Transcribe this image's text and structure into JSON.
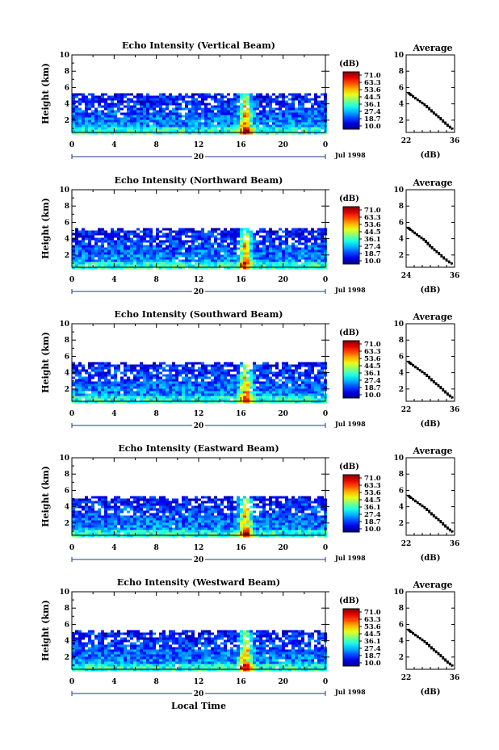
{
  "figure": {
    "x_axis_label": "Local Time",
    "date_label": "Jul 1998",
    "day_label": "20",
    "colorbar_unit": "(dB)",
    "colorbar_ticks": [
      "71.0",
      "63.3",
      "53.6",
      "44.5",
      "36.1",
      "27.4",
      "18.7",
      "10.0"
    ],
    "avg_title": "Average",
    "avg_unit": "(dB)"
  },
  "chart_data": [
    {
      "type": "heatmap",
      "title": "Echo Intensity (Vertical Beam)",
      "ylabel": "Height (km)",
      "x": [
        0,
        4,
        8,
        12,
        16,
        20,
        0
      ],
      "xlim": [
        0,
        24
      ],
      "ylim": [
        0.5,
        10
      ],
      "yticks": [
        2,
        4,
        6,
        8,
        10
      ],
      "colorscale_range_db": [
        10.0,
        71.0
      ],
      "echo_top_km": 5.3,
      "profile": {
        "title": "Average",
        "xlim": [
          22,
          36
        ],
        "xticks": [
          22,
          36
        ],
        "ylim": [
          0.5,
          10
        ],
        "yticks": [
          2,
          4,
          6,
          8,
          10
        ],
        "xlabel": "(dB)",
        "x": [
          35.5,
          33.5,
          31.5,
          29.5,
          27.5,
          25.5,
          23.5,
          22.5
        ],
        "y": [
          0.8,
          1.5,
          2.3,
          3.0,
          3.8,
          4.4,
          5.0,
          5.4
        ]
      }
    },
    {
      "type": "heatmap",
      "title": "Echo Intensity (Northward Beam)",
      "ylabel": "Height (km)",
      "x": [
        0,
        4,
        8,
        12,
        16,
        20,
        0
      ],
      "xlim": [
        0,
        24
      ],
      "ylim": [
        0.5,
        10
      ],
      "yticks": [
        2,
        4,
        6,
        8,
        10
      ],
      "colorscale_range_db": [
        10.0,
        71.0
      ],
      "echo_top_km": 5.3,
      "profile": {
        "title": "Average",
        "xlim": [
          24,
          36
        ],
        "xticks": [
          24,
          36
        ],
        "ylim": [
          0.5,
          10
        ],
        "yticks": [
          2,
          4,
          6,
          8,
          10
        ],
        "xlabel": "(dB)",
        "x": [
          35.5,
          33.5,
          31.7,
          30.0,
          28.5,
          26.8,
          25.2,
          24.3
        ],
        "y": [
          0.8,
          1.5,
          2.3,
          3.0,
          3.8,
          4.4,
          5.0,
          5.4
        ]
      }
    },
    {
      "type": "heatmap",
      "title": "Echo Intensity (Southward Beam)",
      "ylabel": "Height (km)",
      "x": [
        0,
        4,
        8,
        12,
        16,
        20,
        0
      ],
      "xlim": [
        0,
        24
      ],
      "ylim": [
        0.5,
        10
      ],
      "yticks": [
        2,
        4,
        6,
        8,
        10
      ],
      "colorscale_range_db": [
        10.0,
        71.0
      ],
      "echo_top_km": 5.3,
      "profile": {
        "title": "Average",
        "xlim": [
          22,
          36
        ],
        "xticks": [
          22,
          36
        ],
        "ylim": [
          0.5,
          10
        ],
        "yticks": [
          2,
          4,
          6,
          8,
          10
        ],
        "xlabel": "(dB)",
        "x": [
          35.5,
          33.5,
          31.5,
          29.5,
          27.5,
          25.5,
          23.5,
          22.5
        ],
        "y": [
          0.8,
          1.5,
          2.3,
          3.0,
          3.8,
          4.4,
          5.0,
          5.4
        ]
      }
    },
    {
      "type": "heatmap",
      "title": "Echo Intensity (Eastward Beam)",
      "ylabel": "Height (km)",
      "x": [
        0,
        4,
        8,
        12,
        16,
        20,
        0
      ],
      "xlim": [
        0,
        24
      ],
      "ylim": [
        0.5,
        10
      ],
      "yticks": [
        2,
        4,
        6,
        8,
        10
      ],
      "colorscale_range_db": [
        10.0,
        71.0
      ],
      "echo_top_km": 5.3,
      "profile": {
        "title": "Average",
        "xlim": [
          22,
          36
        ],
        "xticks": [
          22,
          36
        ],
        "ylim": [
          0.5,
          10
        ],
        "yticks": [
          2,
          4,
          6,
          8,
          10
        ],
        "xlabel": "(dB)",
        "x": [
          35.5,
          33.5,
          31.5,
          29.5,
          27.5,
          25.5,
          23.5,
          22.5
        ],
        "y": [
          0.8,
          1.5,
          2.3,
          3.0,
          3.8,
          4.4,
          5.0,
          5.4
        ]
      }
    },
    {
      "type": "heatmap",
      "title": "Echo Intensity (Westward Beam)",
      "ylabel": "Height (km)",
      "x": [
        0,
        4,
        8,
        12,
        16,
        20,
        0
      ],
      "xlim": [
        0,
        24
      ],
      "ylim": [
        0.5,
        10
      ],
      "yticks": [
        2,
        4,
        6,
        8,
        10
      ],
      "colorscale_range_db": [
        10.0,
        71.0
      ],
      "echo_top_km": 5.3,
      "profile": {
        "title": "Average",
        "xlim": [
          22,
          36
        ],
        "xticks": [
          22,
          36
        ],
        "ylim": [
          0.5,
          10
        ],
        "yticks": [
          2,
          4,
          6,
          8,
          10
        ],
        "xlabel": "(dB)",
        "x": [
          35.5,
          33.5,
          31.5,
          29.5,
          27.5,
          25.5,
          23.5,
          22.5
        ],
        "y": [
          0.8,
          1.5,
          2.3,
          3.0,
          3.8,
          4.4,
          5.0,
          5.4
        ]
      }
    }
  ]
}
